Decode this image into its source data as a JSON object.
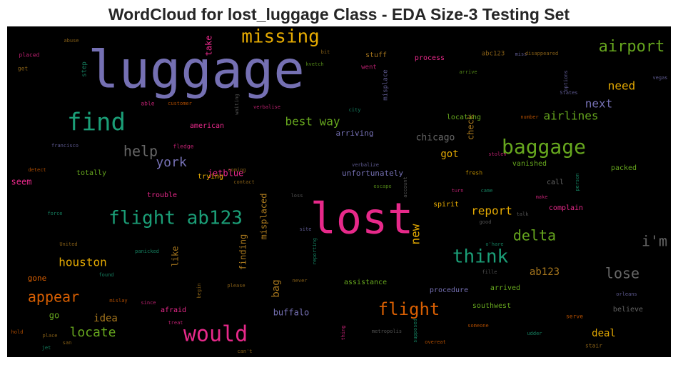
{
  "chart_data": {
    "type": "wordcloud",
    "title": "WordCloud for lost_luggage Class - EDA Size-3 Testing Set",
    "background": "#000000",
    "words": [
      {
        "text": "luggage",
        "color": "#7570b3"
      },
      {
        "text": "lost",
        "color": "#e7298a"
      },
      {
        "text": "missing",
        "color": "#e6ab02"
      },
      {
        "text": "find",
        "color": "#1b9e77"
      },
      {
        "text": "airport",
        "color": "#66a61e"
      },
      {
        "text": "baggage",
        "color": "#66a61e"
      },
      {
        "text": "flight ab123",
        "color": "#1b9e77"
      },
      {
        "text": "would",
        "color": "#e7298a"
      },
      {
        "text": "think",
        "color": "#1b9e77"
      },
      {
        "text": "delta",
        "color": "#66a61e"
      },
      {
        "text": "flight",
        "color": "#d95f02"
      },
      {
        "text": "i'm",
        "color": "#666666"
      },
      {
        "text": "lose",
        "color": "#666666"
      },
      {
        "text": "help",
        "color": "#666666"
      },
      {
        "text": "york",
        "color": "#7570b3"
      },
      {
        "text": "appear",
        "color": "#d95f02"
      },
      {
        "text": "locate",
        "color": "#66a61e"
      },
      {
        "text": "houston",
        "color": "#e6ab02"
      },
      {
        "text": "need",
        "color": "#e6ab02"
      },
      {
        "text": "next",
        "color": "#7570b3"
      },
      {
        "text": "airlines",
        "color": "#66a61e"
      },
      {
        "text": "best way",
        "color": "#66a61e"
      },
      {
        "text": "report",
        "color": "#e6ab02"
      },
      {
        "text": "got",
        "color": "#e6ab02"
      },
      {
        "text": "chicago",
        "color": "#666666"
      },
      {
        "text": "new",
        "color": "#e6ab02"
      },
      {
        "text": "ab123",
        "color": "#a6761d"
      },
      {
        "text": "deal",
        "color": "#e6ab02"
      },
      {
        "text": "bag",
        "color": "#a6761d"
      },
      {
        "text": "misplaced",
        "color": "#a6761d"
      },
      {
        "text": "finding",
        "color": "#a6761d"
      },
      {
        "text": "like",
        "color": "#a6761d"
      },
      {
        "text": "check",
        "color": "#a6761d"
      },
      {
        "text": "take",
        "color": "#e7298a"
      },
      {
        "text": "idea",
        "color": "#a6761d"
      },
      {
        "text": "buffalo",
        "color": "#7570b3"
      },
      {
        "text": "go",
        "color": "#66a61e"
      },
      {
        "text": "gone",
        "color": "#d95f02"
      },
      {
        "text": "seem",
        "color": "#e7298a"
      },
      {
        "text": "jetblue",
        "color": "#e7298a"
      },
      {
        "text": "unfortunately",
        "color": "#7570b3"
      },
      {
        "text": "arriving",
        "color": "#7570b3"
      },
      {
        "text": "locating",
        "color": "#66a61e"
      },
      {
        "text": "trying",
        "color": "#e6ab02"
      },
      {
        "text": "american",
        "color": "#e7298a"
      },
      {
        "text": "totally",
        "color": "#66a61e"
      },
      {
        "text": "trouble",
        "color": "#e7298a"
      },
      {
        "text": "vanished",
        "color": "#66a61e"
      },
      {
        "text": "packed",
        "color": "#66a61e"
      },
      {
        "text": "call",
        "color": "#666666"
      },
      {
        "text": "spirit",
        "color": "#e6ab02"
      },
      {
        "text": "complain",
        "color": "#e7298a"
      },
      {
        "text": "assistance",
        "color": "#66a61e"
      },
      {
        "text": "procedure",
        "color": "#7570b3"
      },
      {
        "text": "arrived",
        "color": "#66a61e"
      },
      {
        "text": "southwest",
        "color": "#66a61e"
      },
      {
        "text": "believe",
        "color": "#666666"
      },
      {
        "text": "afraid",
        "color": "#e7298a"
      },
      {
        "text": "stuff",
        "color": "#a6761d"
      },
      {
        "text": "process",
        "color": "#e7298a"
      },
      {
        "text": "abc123",
        "color": "#a6761d"
      },
      {
        "text": "went",
        "color": "#e7298a"
      },
      {
        "text": "misplace",
        "color": "#7570b3"
      },
      {
        "text": "step",
        "color": "#1b9e77"
      },
      {
        "text": "able",
        "color": "#e7298a"
      },
      {
        "text": "customer",
        "color": "#d95f02"
      },
      {
        "text": "fledge",
        "color": "#e7298a"
      },
      {
        "text": "francisco",
        "color": "#7570b3"
      },
      {
        "text": "detect",
        "color": "#d95f02"
      },
      {
        "text": "abuse",
        "color": "#a6761d"
      },
      {
        "text": "placed",
        "color": "#e7298a"
      },
      {
        "text": "get",
        "color": "#a6761d"
      },
      {
        "text": "force",
        "color": "#1b9e77"
      },
      {
        "text": "United",
        "color": "#a6761d"
      },
      {
        "text": "panicked",
        "color": "#1b9e77"
      },
      {
        "text": "found",
        "color": "#1b9e77"
      },
      {
        "text": "mislay",
        "color": "#d95f02"
      },
      {
        "text": "since",
        "color": "#e7298a"
      },
      {
        "text": "treat",
        "color": "#e7298a"
      },
      {
        "text": "begin",
        "color": "#a6761d"
      },
      {
        "text": "please",
        "color": "#a6761d"
      },
      {
        "text": "san",
        "color": "#a6761d"
      },
      {
        "text": "place",
        "color": "#a6761d"
      },
      {
        "text": "hold",
        "color": "#d95f02"
      },
      {
        "text": "jet",
        "color": "#1b9e77"
      },
      {
        "text": "can't",
        "color": "#a6761d"
      },
      {
        "text": "never",
        "color": "#a6761d"
      },
      {
        "text": "reporting",
        "color": "#1b9e77"
      },
      {
        "text": "thing",
        "color": "#e7298a"
      },
      {
        "text": "metropolis",
        "color": "#666666"
      },
      {
        "text": "supposed",
        "color": "#1b9e77"
      },
      {
        "text": "overeat",
        "color": "#d95f02"
      },
      {
        "text": "someone",
        "color": "#d95f02"
      },
      {
        "text": "udder",
        "color": "#1b9e77"
      },
      {
        "text": "stair",
        "color": "#a6761d"
      },
      {
        "text": "serve",
        "color": "#d95f02"
      },
      {
        "text": "orleans",
        "color": "#7570b3"
      },
      {
        "text": "fille",
        "color": "#666666"
      },
      {
        "text": "o'hare",
        "color": "#1b9e77"
      },
      {
        "text": "good",
        "color": "#666666"
      },
      {
        "text": "talk",
        "color": "#666666"
      },
      {
        "text": "make",
        "color": "#e7298a"
      },
      {
        "text": "came",
        "color": "#1b9e77"
      },
      {
        "text": "turn",
        "color": "#e7298a"
      },
      {
        "text": "escape",
        "color": "#66a61e"
      },
      {
        "text": "account",
        "color": "#666666"
      },
      {
        "text": "verbalize",
        "color": "#7570b3"
      },
      {
        "text": "fresh",
        "color": "#e6ab02"
      },
      {
        "text": "stolen",
        "color": "#e7298a"
      },
      {
        "text": "city",
        "color": "#1b9e77"
      },
      {
        "text": "coming",
        "color": "#a6761d"
      },
      {
        "text": "contact",
        "color": "#a6761d"
      },
      {
        "text": "loss",
        "color": "#666666"
      },
      {
        "text": "site",
        "color": "#7570b3"
      },
      {
        "text": "waiting",
        "color": "#666666"
      },
      {
        "text": "verbalise",
        "color": "#e7298a"
      },
      {
        "text": "bit",
        "color": "#a6761d"
      },
      {
        "text": "kvetch",
        "color": "#66a61e"
      },
      {
        "text": "miss",
        "color": "#7570b3"
      },
      {
        "text": "arrive",
        "color": "#66a61e"
      },
      {
        "text": "disappeared",
        "color": "#a6761d"
      },
      {
        "text": "number",
        "color": "#d95f02"
      },
      {
        "text": "person",
        "color": "#1b9e77"
      },
      {
        "text": "options",
        "color": "#7570b3"
      },
      {
        "text": "vegas",
        "color": "#7570b3"
      },
      {
        "text": "States",
        "color": "#7570b3"
      }
    ]
  }
}
